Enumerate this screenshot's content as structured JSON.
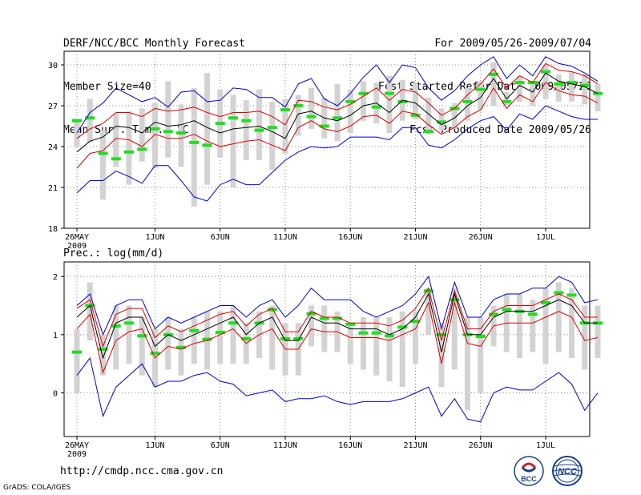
{
  "header": {
    "left": [
      "DERF/NCC/BCC Monthly Forecast",
      "Member Size=40",
      "Mean Surf. Temp.: °C"
    ],
    "right": [
      "For 2009/05/26-2009/07/04",
      "Fcst Started Refer Date 2009/05/25",
      "Fcst Produced Date 2009/05/26"
    ]
  },
  "footer": {
    "url": "http://cmdp.ncc.cma.gov.cn",
    "grads": "GrADS: COLA/IGES",
    "logo_left": "BCC",
    "logo_right": "NCC"
  },
  "colors": {
    "mean": "#000000",
    "spread": "#dd0000",
    "envelope": "#0000cc",
    "box": "#d3d3d3",
    "median": "#22dd22",
    "grid": "#888888"
  },
  "chart_data": [
    {
      "type": "line",
      "title": "Mean Surf. Temp.: °C",
      "x_tick_labels": [
        "26MAY",
        "1JUN",
        "6JUN",
        "11JUN",
        "16JUN",
        "21JUN",
        "26JUN",
        "1JUL"
      ],
      "x_tick_day_index": [
        0,
        6,
        11,
        16,
        21,
        26,
        31,
        36
      ],
      "year_label": "2009",
      "ylim": [
        18,
        31
      ],
      "yticks": [
        18,
        21,
        24,
        27,
        30
      ],
      "series": [
        {
          "name": "mean",
          "values": [
            23.6,
            24.4,
            24.7,
            25.5,
            25.4,
            25.0,
            25.8,
            25.5,
            25.6,
            25.9,
            25.4,
            25.0,
            25.3,
            25.4,
            25.5,
            25.1,
            24.6,
            26.4,
            26.6,
            26.1,
            25.9,
            26.3,
            27.0,
            27.2,
            26.5,
            27.4,
            27.2,
            26.4,
            25.6,
            26.1,
            27.0,
            27.6,
            29.0,
            27.5,
            28.5,
            28.0,
            29.4,
            28.8,
            28.6,
            28.4,
            27.9
          ]
        },
        {
          "name": "upper",
          "values": [
            24.6,
            25.3,
            25.7,
            26.5,
            26.5,
            26.2,
            26.8,
            26.6,
            26.7,
            26.9,
            26.5,
            26.2,
            26.5,
            26.5,
            26.6,
            26.2,
            25.6,
            27.4,
            27.3,
            26.9,
            26.7,
            27.1,
            27.7,
            28.3,
            27.4,
            28.2,
            28.0,
            27.2,
            26.3,
            26.8,
            27.8,
            28.6,
            29.7,
            28.3,
            29.2,
            28.7,
            30.1,
            29.6,
            29.5,
            29.2,
            28.6
          ]
        },
        {
          "name": "lower",
          "values": [
            22.4,
            23.5,
            23.7,
            24.6,
            24.5,
            24.0,
            24.9,
            24.6,
            24.6,
            24.9,
            24.4,
            24.0,
            24.2,
            24.4,
            24.5,
            24.1,
            23.7,
            25.4,
            25.9,
            25.3,
            25.1,
            25.5,
            26.2,
            26.3,
            25.7,
            26.6,
            26.4,
            25.6,
            24.9,
            25.4,
            26.2,
            26.7,
            28.3,
            26.8,
            27.8,
            27.3,
            28.7,
            28.1,
            27.8,
            27.7,
            27.2
          ]
        },
        {
          "name": "max",
          "values": [
            25.0,
            26.5,
            27.2,
            28.3,
            27.8,
            27.3,
            27.6,
            26.9,
            28.0,
            28.1,
            27.3,
            27.4,
            28.3,
            28.2,
            27.6,
            27.6,
            26.9,
            28.6,
            29.0,
            27.5,
            27.0,
            27.9,
            29.1,
            30.0,
            28.7,
            30.0,
            29.8,
            28.3,
            27.4,
            28.1,
            29.2,
            30.0,
            30.6,
            29.0,
            30.0,
            29.2,
            30.6,
            30.1,
            29.9,
            29.4,
            28.8
          ]
        },
        {
          "name": "min",
          "values": [
            20.6,
            21.5,
            21.5,
            22.2,
            21.8,
            21.3,
            22.6,
            22.6,
            21.5,
            20.3,
            20.0,
            21.2,
            21.6,
            21.2,
            21.2,
            22.1,
            23.0,
            23.6,
            24.0,
            23.9,
            24.0,
            24.7,
            24.7,
            24.7,
            24.5,
            25.4,
            25.4,
            24.1,
            23.9,
            24.5,
            25.3,
            25.9,
            26.2,
            25.2,
            26.4,
            26.0,
            27.0,
            26.6,
            26.2,
            26.0,
            26.0
          ]
        },
        {
          "name": "median",
          "values": [
            25.9,
            26.1,
            23.5,
            23.1,
            23.6,
            23.8,
            25.3,
            25.1,
            25.0,
            24.3,
            24.1,
            25.7,
            26.1,
            25.9,
            25.2,
            25.4,
            26.7,
            27.0,
            26.2,
            25.5,
            26.1,
            27.3,
            27.9,
            26.9,
            27.9,
            27.3,
            26.3,
            25.1,
            25.8,
            26.8,
            27.3,
            28.2,
            29.3,
            27.3,
            28.7,
            28.7,
            29.5,
            28.6,
            28.7,
            28.5,
            27.9
          ]
        },
        {
          "name": "q75",
          "values": [
            26.0,
            27.5,
            25.2,
            26.4,
            26.6,
            26.8,
            27.2,
            28.8,
            27.1,
            28.3,
            29.4,
            28.2,
            27.8,
            27.4,
            28.2,
            27.3,
            27.5,
            27.8,
            28.3,
            27.6,
            28.6,
            28.2,
            28.8,
            28.7,
            29.2,
            28.9,
            28.6,
            27.6,
            26.8,
            27.2,
            28.3,
            28.8,
            30.2,
            28.0,
            29.2,
            28.7,
            30.0,
            29.3,
            29.5,
            29.3,
            28.6
          ]
        },
        {
          "name": "q25",
          "values": [
            24.0,
            24.3,
            20.1,
            22.5,
            21.2,
            22.9,
            22.4,
            23.2,
            22.5,
            19.6,
            21.2,
            23.2,
            21.0,
            23.0,
            23.0,
            22.3,
            23.5,
            24.8,
            25.3,
            24.6,
            24.4,
            25.0,
            25.9,
            25.7,
            25.0,
            25.9,
            26.0,
            24.9,
            25.2,
            25.3,
            25.9,
            26.7,
            27.0,
            27.0,
            27.3,
            27.0,
            27.5,
            27.3,
            27.3,
            27.1,
            26.6
          ]
        }
      ]
    },
    {
      "type": "line",
      "title": "Prec.: log(mm/d)",
      "x_tick_labels": [
        "26MAY",
        "1JUN",
        "6JUN",
        "11JUN",
        "16JUN",
        "21JUN",
        "26JUN",
        "1JUL"
      ],
      "x_tick_day_index": [
        0,
        6,
        11,
        16,
        21,
        26,
        31,
        36
      ],
      "year_label": "2009",
      "ylim": [
        -0.75,
        2.25
      ],
      "yticks": [
        0,
        1,
        2
      ],
      "series": [
        {
          "name": "mean",
          "values": [
            1.3,
            1.5,
            0.6,
            1.2,
            1.3,
            1.3,
            0.8,
            1.0,
            0.9,
            1.0,
            1.1,
            1.2,
            1.3,
            1.0,
            1.2,
            1.3,
            0.9,
            0.9,
            1.3,
            1.2,
            1.2,
            1.1,
            1.1,
            1.1,
            1.0,
            1.1,
            1.3,
            1.7,
            0.7,
            1.7,
            1.0,
            1.0,
            1.3,
            1.4,
            1.4,
            1.4,
            1.5,
            1.6,
            1.5,
            1.2,
            1.2
          ]
        },
        {
          "name": "upper",
          "values": [
            1.45,
            1.6,
            0.8,
            1.35,
            1.45,
            1.45,
            0.95,
            1.15,
            1.05,
            1.15,
            1.25,
            1.35,
            1.4,
            1.15,
            1.35,
            1.45,
            1.05,
            1.05,
            1.4,
            1.3,
            1.3,
            1.2,
            1.2,
            1.2,
            1.15,
            1.25,
            1.45,
            1.8,
            0.9,
            1.75,
            1.1,
            1.1,
            1.4,
            1.5,
            1.5,
            1.5,
            1.6,
            1.7,
            1.6,
            1.3,
            1.3
          ]
        },
        {
          "name": "lower",
          "values": [
            1.1,
            1.35,
            0.35,
            0.9,
            1.05,
            1.1,
            0.6,
            0.8,
            0.75,
            0.85,
            0.9,
            1.0,
            1.1,
            0.85,
            1.0,
            1.1,
            0.75,
            0.75,
            1.1,
            1.05,
            1.05,
            0.95,
            0.95,
            0.95,
            0.9,
            1.0,
            1.1,
            1.55,
            0.5,
            1.55,
            0.85,
            0.8,
            1.15,
            1.2,
            1.2,
            1.2,
            1.3,
            1.4,
            1.3,
            0.9,
            0.95
          ]
        },
        {
          "name": "max",
          "values": [
            1.5,
            1.7,
            1.0,
            1.5,
            1.6,
            1.6,
            1.1,
            1.3,
            1.2,
            1.3,
            1.4,
            1.5,
            1.5,
            1.3,
            1.5,
            1.6,
            1.3,
            1.5,
            1.8,
            1.6,
            1.6,
            1.6,
            1.4,
            1.3,
            1.4,
            1.5,
            1.7,
            2.0,
            1.1,
            1.9,
            1.3,
            1.3,
            1.6,
            1.7,
            1.7,
            1.8,
            1.8,
            2.0,
            1.9,
            1.55,
            1.6
          ]
        },
        {
          "name": "min",
          "values": [
            0.3,
            0.6,
            -0.4,
            0.1,
            0.3,
            0.5,
            0.1,
            0.2,
            0.2,
            0.3,
            0.35,
            0.2,
            0.15,
            -0.05,
            0.0,
            0.05,
            -0.15,
            -0.1,
            -0.1,
            -0.05,
            -0.15,
            -0.2,
            -0.15,
            -0.15,
            -0.15,
            -0.1,
            0.0,
            0.1,
            -0.4,
            -0.1,
            -0.45,
            -0.5,
            0.0,
            0.1,
            0.05,
            0.05,
            0.2,
            0.35,
            0.15,
            -0.3,
            0.0
          ]
        },
        {
          "name": "median",
          "values": [
            0.7,
            1.5,
            0.75,
            1.15,
            1.2,
            0.98,
            0.68,
            1.0,
            0.78,
            1.07,
            0.92,
            1.04,
            1.2,
            0.93,
            1.2,
            1.43,
            0.93,
            0.93,
            1.36,
            1.28,
            1.28,
            1.18,
            1.03,
            1.03,
            0.98,
            1.13,
            1.23,
            1.75,
            1.0,
            1.6,
            1.0,
            0.97,
            1.35,
            1.43,
            1.4,
            1.35,
            1.55,
            1.72,
            1.68,
            1.2,
            1.2
          ]
        },
        {
          "name": "q75",
          "values": [
            1.1,
            1.9,
            1.0,
            1.5,
            1.5,
            1.3,
            1.1,
            1.3,
            1.1,
            1.3,
            1.4,
            1.4,
            1.5,
            1.2,
            1.4,
            1.5,
            1.2,
            1.2,
            1.5,
            1.5,
            1.4,
            1.2,
            1.3,
            1.3,
            1.3,
            1.4,
            1.4,
            1.8,
            1.2,
            1.8,
            1.3,
            1.3,
            1.5,
            1.7,
            1.7,
            1.6,
            1.8,
            1.9,
            1.8,
            1.5,
            1.5
          ]
        },
        {
          "name": "q25",
          "values": [
            0.0,
            0.9,
            0.3,
            0.4,
            0.5,
            0.3,
            0.1,
            0.4,
            0.3,
            0.5,
            0.4,
            0.5,
            0.5,
            0.5,
            0.6,
            0.4,
            0.3,
            0.3,
            0.8,
            0.7,
            0.7,
            0.5,
            0.4,
            0.3,
            0.2,
            0.1,
            0.5,
            1.0,
            0.1,
            0.4,
            -0.3,
            0.0,
            0.8,
            0.7,
            0.6,
            0.7,
            0.5,
            0.7,
            0.6,
            0.4,
            0.6
          ]
        }
      ]
    }
  ]
}
